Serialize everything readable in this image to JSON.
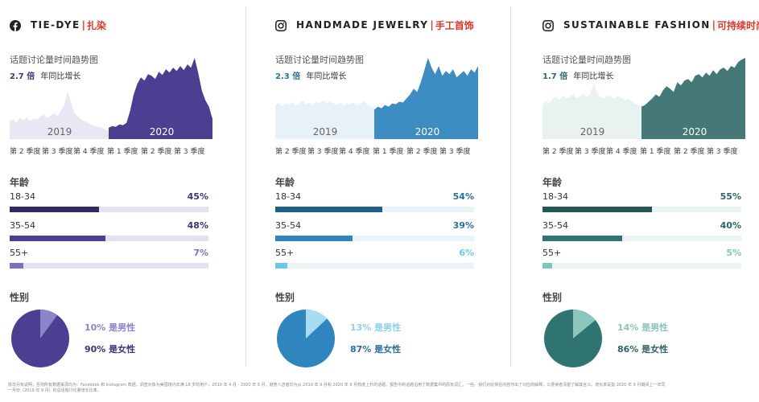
{
  "colors": {
    "brand_red": "#d9362b",
    "tiedye": {
      "bar_dark": "#2f2a63",
      "bar_mid": "#4a3f90",
      "bar_light": "#7a72bf",
      "pct": "#3d347c",
      "track": "#e2e3f2",
      "area_2019": "#e7e8f4",
      "area_2020": "#4a3f90",
      "pie_f": "#4a3f90",
      "pie_m": "#8a84c8",
      "leg_m": "#8a84c8",
      "leg_f": "#3d347c"
    },
    "jewelry": {
      "bar_dark": "#205e8a",
      "bar_mid": "#2f86be",
      "bar_light": "#6fc7e8",
      "pct": "#2b6f9f",
      "track": "#e9f3f8",
      "area_2019": "#e6f1f8",
      "area_2020": "#3d8dc2",
      "pie_f": "#2f86be",
      "pie_m": "#a7dcf3",
      "leg_m": "#8ed0ea",
      "leg_f": "#2b6f9f"
    },
    "fashion": {
      "bar_dark": "#255656",
      "bar_mid": "#2f7473",
      "bar_light": "#7fc6bd",
      "pct": "#2f6565",
      "track": "#eaf4f3",
      "area_2019": "#e8f2f0",
      "area_2020": "#457978",
      "pie_f": "#2f7473",
      "pie_m": "#8bc5bb",
      "leg_m": "#8bc5bb",
      "leg_f": "#2f6565"
    }
  },
  "panels": [
    {
      "key": "tiedye",
      "icon": "facebook-icon",
      "name_en": "TIE-DYE",
      "separator": "|",
      "name_cn": "扎染",
      "trend_title": "话题讨论量时间趋势图",
      "growth_value": "2.7 倍",
      "growth_label": "年同比增长",
      "year_2019": "2019",
      "year_2020": "2020",
      "quarters": [
        "第 2 季度",
        "第 3 季度",
        "第 4 季度",
        "第 1 季度",
        "第 2 季度",
        "第 3 季度"
      ],
      "age_title": "年龄",
      "ages": [
        {
          "label": "18-34",
          "pct": "45%",
          "value": 45
        },
        {
          "label": "35-54",
          "pct": "48%",
          "value": 48
        },
        {
          "label": "55+",
          "pct": "7%",
          "value": 7
        }
      ],
      "gender_title": "性别",
      "male": {
        "text": "10% 是男性",
        "value": 10
      },
      "female": {
        "text": "90% 是女性",
        "value": 90
      },
      "trend_2019": [
        0.22,
        0.24,
        0.2,
        0.26,
        0.23,
        0.27,
        0.22,
        0.25,
        0.24,
        0.28,
        0.3,
        0.26,
        0.29,
        0.32,
        0.28,
        0.35,
        0.42,
        0.58,
        0.45,
        0.32,
        0.28,
        0.24,
        0.22,
        0.2,
        0.18,
        0.16,
        0.15,
        0.14,
        0.12,
        0.1
      ],
      "trend_2020": [
        0.14,
        0.16,
        0.15,
        0.18,
        0.17,
        0.2,
        0.35,
        0.55,
        0.68,
        0.76,
        0.72,
        0.8,
        0.78,
        0.74,
        0.83,
        0.79,
        0.86,
        0.82,
        0.88,
        0.84,
        0.9,
        0.85,
        0.92,
        0.88,
        1.0,
        0.82,
        0.6,
        0.48,
        0.4,
        0.25
      ]
    },
    {
      "key": "jewelry",
      "icon": "instagram-icon",
      "name_en": "HANDMADE JEWELRY",
      "separator": "|",
      "name_cn": "手工首饰",
      "trend_title": "话题讨论量时间趋势图",
      "growth_value": "2.3 倍",
      "growth_label": "年同比增长",
      "year_2019": "2019",
      "year_2020": "2020",
      "quarters": [
        "第 2 季度",
        "第 3 季度",
        "第 4 季度",
        "第 1 季度",
        "第 2 季度",
        "第 3 季度"
      ],
      "age_title": "年龄",
      "ages": [
        {
          "label": "18-34",
          "pct": "54%",
          "value": 54
        },
        {
          "label": "35-54",
          "pct": "39%",
          "value": 39
        },
        {
          "label": "55+",
          "pct": "6%",
          "value": 6
        }
      ],
      "gender_title": "性别",
      "male": {
        "text": "13% 是男性",
        "value": 13
      },
      "female": {
        "text": "87% 是女性",
        "value": 87
      },
      "trend_2019": [
        0.42,
        0.45,
        0.4,
        0.44,
        0.43,
        0.46,
        0.41,
        0.44,
        0.47,
        0.43,
        0.45,
        0.42,
        0.46,
        0.44,
        0.48,
        0.43,
        0.46,
        0.44,
        0.42,
        0.45,
        0.41,
        0.44,
        0.43,
        0.45,
        0.42,
        0.44,
        0.46,
        0.42,
        0.4,
        0.38
      ],
      "trend_2020": [
        0.36,
        0.4,
        0.38,
        0.42,
        0.4,
        0.44,
        0.43,
        0.46,
        0.45,
        0.5,
        0.55,
        0.62,
        0.58,
        0.7,
        0.85,
        1.0,
        0.88,
        0.8,
        0.9,
        0.78,
        0.84,
        0.8,
        0.86,
        0.76,
        0.8,
        0.84,
        0.78,
        0.86,
        0.82,
        0.9
      ]
    },
    {
      "key": "fashion",
      "icon": "instagram-icon",
      "name_en": "SUSTAINABLE FASHION",
      "separator": "|",
      "name_cn": "可持续时尚",
      "trend_title": "话题讨论量时间趋势图",
      "growth_value": "1.7 倍",
      "growth_label": "年同比增长",
      "year_2019": "2019",
      "year_2020": "2020",
      "quarters": [
        "第 2 季度",
        "第 3 季度",
        "第 4 季度",
        "第 1 季度",
        "第 2 季度",
        "第 3 季度"
      ],
      "age_title": "年龄",
      "ages": [
        {
          "label": "18-34",
          "pct": "55%",
          "value": 55
        },
        {
          "label": "35-54",
          "pct": "40%",
          "value": 40
        },
        {
          "label": "55+",
          "pct": "5%",
          "value": 5
        }
      ],
      "gender_title": "性别",
      "male": {
        "text": "14% 是男性",
        "value": 14
      },
      "female": {
        "text": "86% 是女性",
        "value": 86
      },
      "trend_2019": [
        0.42,
        0.46,
        0.44,
        0.5,
        0.52,
        0.48,
        0.54,
        0.5,
        0.52,
        0.55,
        0.5,
        0.53,
        0.56,
        0.52,
        0.55,
        0.7,
        0.56,
        0.52,
        0.5,
        0.54,
        0.52,
        0.5,
        0.53,
        0.51,
        0.48,
        0.5,
        0.47,
        0.44,
        0.42,
        0.4
      ],
      "trend_2020": [
        0.4,
        0.42,
        0.46,
        0.5,
        0.55,
        0.52,
        0.6,
        0.65,
        0.62,
        0.58,
        0.7,
        0.66,
        0.72,
        0.74,
        0.7,
        0.78,
        0.8,
        0.76,
        0.82,
        0.78,
        0.85,
        0.8,
        0.86,
        0.88,
        0.84,
        0.9,
        0.88,
        0.95,
        0.98,
        1.0
      ]
    }
  ],
  "footnote": "除非另有说明，否则所有数据来源均为：Facebook 和 Instagram 数据，调查对象为美国境内年满 18 岁的用户，2019 年 4 月 - 2020 年 9 月。趋势入选者均为从 2019 年 9 月和 2020 年 9 月热度上升的话题。报告中的话题沿用了数据集中的原有词汇。一些。我们对此常在内容作出了对应的解释，以便读者清楚了解其含义。增长率是指 2020 年 9 月期间上一年同一月份（2019 年 9 月）的总话题讨论量增长比率。",
  "chart_data": [
    {
      "type": "area",
      "title": "TIE-DYE | 扎染 话题讨论量时间趋势图",
      "subtitle": "2.7 倍 年同比增长",
      "categories": [
        "第 2 季度",
        "第 3 季度",
        "第 4 季度",
        "第 1 季度",
        "第 2 季度",
        "第 3 季度"
      ],
      "series": [
        {
          "name": "2019"
        },
        {
          "name": "2020"
        }
      ],
      "age": {
        "18-34": 45,
        "35-54": 48,
        "55+": 7
      },
      "gender": {
        "male": 10,
        "female": 90
      }
    },
    {
      "type": "area",
      "title": "HANDMADE JEWELRY | 手工首饰 话题讨论量时间趋势图",
      "subtitle": "2.3 倍 年同比增长",
      "categories": [
        "第 2 季度",
        "第 3 季度",
        "第 4 季度",
        "第 1 季度",
        "第 2 季度",
        "第 3 季度"
      ],
      "series": [
        {
          "name": "2019"
        },
        {
          "name": "2020"
        }
      ],
      "age": {
        "18-34": 54,
        "35-54": 39,
        "55+": 6
      },
      "gender": {
        "male": 13,
        "female": 87
      }
    },
    {
      "type": "area",
      "title": "SUSTAINABLE FASHION | 可持续时尚 话题讨论量时间趋势图",
      "subtitle": "1.7 倍 年同比增长",
      "categories": [
        "第 2 季度",
        "第 3 季度",
        "第 4 季度",
        "第 1 季度",
        "第 2 季度",
        "第 3 季度"
      ],
      "series": [
        {
          "name": "2019"
        },
        {
          "name": "2020"
        }
      ],
      "age": {
        "18-34": 55,
        "35-54": 40,
        "55+": 5
      },
      "gender": {
        "male": 14,
        "female": 86
      }
    }
  ]
}
